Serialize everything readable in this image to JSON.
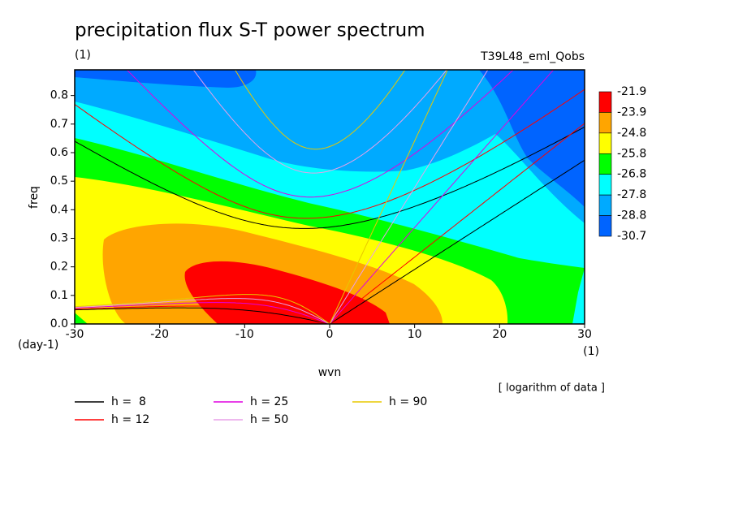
{
  "chart_data": {
    "type": "contour",
    "title": "precipitation flux S-T power spectrum",
    "subtitle_left": "(1)",
    "subtitle_right": "T39L48_eml_Qobs",
    "xlabel": "wvn",
    "ylabel": "freq",
    "x_unit": "(1)",
    "y_unit": "(day-1)",
    "note": "[ logarithm of data ]",
    "xlim": [
      -30,
      30
    ],
    "xticks": [
      -30,
      -20,
      -10,
      0,
      10,
      20,
      30
    ],
    "ylim": [
      0,
      0.89
    ],
    "yticks": [
      {
        "value": 0,
        "label": "0.0"
      },
      0.1,
      0.2,
      0.3,
      0.4,
      0.5,
      0.6,
      0.7,
      0.8
    ],
    "levels": [
      -21.9,
      -23.9,
      -24.8,
      -25.8,
      -26.8,
      -27.8,
      -28.8,
      -30.7
    ],
    "level_colors": [
      "#ff0000",
      "#ffa500",
      "#ffff00",
      "#00ff00",
      "#00ffff",
      "#00aaff",
      "#0064ff"
    ],
    "series": [
      {
        "name": "h =  8",
        "h": 8,
        "color": "#000000"
      },
      {
        "name": "h = 12",
        "h": 12,
        "color": "#ff0000"
      },
      {
        "name": "h = 25",
        "h": 25,
        "color": "#e000e0"
      },
      {
        "name": "h = 50",
        "h": 50,
        "color": "#e8a0e8"
      },
      {
        "name": "h = 90",
        "h": 90,
        "color": "#e8c800"
      }
    ]
  }
}
